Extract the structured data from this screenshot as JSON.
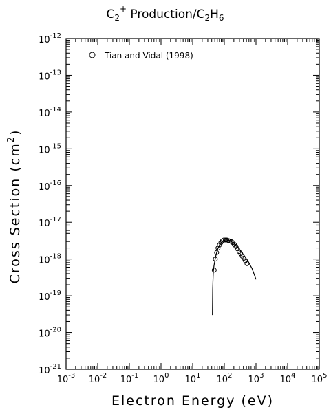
{
  "chart_data": {
    "type": "scatter",
    "title": {
      "base": "C",
      "sub1": "2",
      "sup": "+",
      "mid": " Production/C",
      "sub2": "2",
      "end": "H",
      "sub3": "6"
    },
    "xlabel": "Electron Energy (eV)",
    "ylabel": {
      "base": "Cross Section (cm",
      "sup": "2",
      "end": ")"
    },
    "xscale": "log",
    "yscale": "log",
    "xlim": [
      0.001,
      100000
    ],
    "ylim": [
      1e-21,
      1e-12
    ],
    "x_tick_labels": [
      {
        "base": "10",
        "exp": "-3"
      },
      {
        "base": "10",
        "exp": "-2"
      },
      {
        "base": "10",
        "exp": "-1"
      },
      {
        "base": "10",
        "exp": "0"
      },
      {
        "base": "10",
        "exp": "1"
      },
      {
        "base": "10",
        "exp": "2"
      },
      {
        "base": "10",
        "exp": "3"
      },
      {
        "base": "10",
        "exp": "4"
      },
      {
        "base": "10",
        "exp": "5"
      }
    ],
    "y_tick_labels": [
      {
        "base": "10",
        "exp": "-21"
      },
      {
        "base": "10",
        "exp": "-20"
      },
      {
        "base": "10",
        "exp": "-19"
      },
      {
        "base": "10",
        "exp": "-18"
      },
      {
        "base": "10",
        "exp": "-17"
      },
      {
        "base": "10",
        "exp": "-16"
      },
      {
        "base": "10",
        "exp": "-15"
      },
      {
        "base": "10",
        "exp": "-14"
      },
      {
        "base": "10",
        "exp": "-13"
      },
      {
        "base": "10",
        "exp": "-12"
      }
    ],
    "legend": {
      "label": "Tian and Vidal (1998)",
      "placement": "top-left",
      "marker": "open-circle"
    },
    "grid": false,
    "series": [
      {
        "name": "Tian and Vidal (1998)",
        "kind": "markers",
        "x": [
          48,
          52,
          57,
          63,
          70,
          78,
          87,
          97,
          108,
          120,
          133,
          148,
          165,
          185,
          207,
          232,
          260,
          292,
          328,
          368,
          413,
          463,
          520
        ],
        "y": [
          5e-19,
          1e-18,
          1.5e-18,
          2e-18,
          2.4e-18,
          2.8e-18,
          3.1e-18,
          3.3e-18,
          3.3e-18,
          3.3e-18,
          3.2e-18,
          3.1e-18,
          3e-18,
          2.8e-18,
          2.5e-18,
          2.2e-18,
          1.9e-18,
          1.6e-18,
          1.4e-18,
          1.2e-18,
          1.05e-18,
          9e-19,
          7.5e-19
        ]
      },
      {
        "name": "",
        "kind": "line",
        "x": [
          42,
          43,
          44,
          45,
          47,
          50,
          55,
          62,
          70,
          80,
          92,
          105,
          120,
          140,
          165,
          200,
          250,
          320,
          420,
          550,
          750,
          1000
        ],
        "y": [
          3e-20,
          1.5e-19,
          3e-19,
          4.5e-19,
          6.5e-19,
          9e-19,
          1.35e-18,
          1.9e-18,
          2.4e-18,
          2.85e-18,
          3.15e-18,
          3.3e-18,
          3.3e-18,
          3.2e-18,
          3e-18,
          2.65e-18,
          2.2e-18,
          1.7e-18,
          1.25e-18,
          9e-19,
          5.5e-19,
          2.8e-19
        ]
      }
    ]
  }
}
